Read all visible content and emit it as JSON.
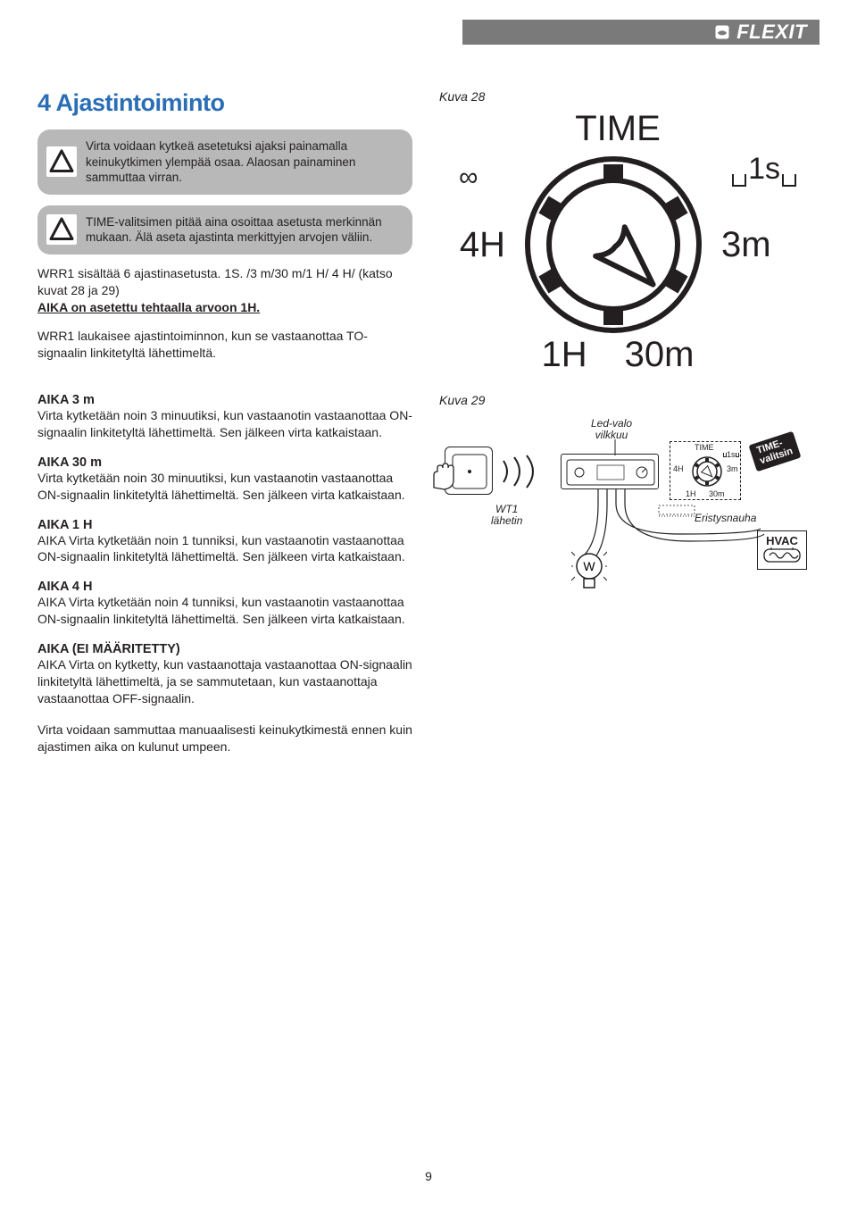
{
  "brand": "FLEXIT",
  "page_number": "9",
  "heading": "4   Ajastintoiminto",
  "callout1": "Virta voidaan kytkeä asetetuksi ajaksi painamalla keinukytkimen ylempää osaa. Alaosan painaminen sammuttaa virran.",
  "callout2": "TIME-valitsimen pitää aina osoittaa asetusta merkinnän mukaan. Älä aseta ajastinta merkittyjen arvojen väliin.",
  "para1_a": "WRR1 sisältää 6 ajastinasetusta. 1S. /3 m/30 m/1 H/ 4 H/ (katso kuvat 28 ja 29)",
  "para1_b": "AIKA on asetettu tehtaalla arvoon 1H.",
  "para2": "WRR1 laukaisee ajastintoiminnon, kun se vastaanottaa TO-signaalin linkitetyltä lähettimeltä.",
  "fig28": "Kuva 28",
  "fig29": "Kuva 29",
  "dial": {
    "title": "TIME",
    "inf": "∞",
    "top_right": "1s",
    "left": "4H",
    "right": "3m",
    "bottom_left": "1H",
    "bottom_right": "30m",
    "tick_color": "#231f20",
    "background": "#ffffff",
    "radius": 105
  },
  "sections": [
    {
      "title": "AIKA 3 m",
      "body": "Virta kytketään noin 3 minuutiksi, kun vastaanotin vastaanottaa ON-signaalin linkitetyltä lähettimeltä. Sen jälkeen virta katkaistaan."
    },
    {
      "title": "AIKA 30 m",
      "body": "Virta kytketään noin 30 minuutiksi, kun vastaanotin vastaanottaa ON-signaalin linkitetyltä lähettimeltä. Sen jälkeen virta katkaistaan."
    },
    {
      "title": "AIKA 1 H",
      "body": "AIKA Virta kytketään noin 1 tunniksi, kun vastaanotin vastaanottaa ON-signaalin linkitetyltä lähettimeltä. Sen jälkeen virta katkaistaan."
    },
    {
      "title": "AIKA 4 H",
      "body": "AIKA Virta kytketään noin 4 tunniksi, kun vastaanotin vastaanottaa ON-signaalin linkitetyltä lähettimeltä. Sen jälkeen virta katkaistaan."
    },
    {
      "title": "AIKA (EI MÄÄRITETTY)",
      "body": "AIKA Virta on kytketty, kun vastaanottaja vastaanottaa ON-signaalin linkitetyltä lähettimeltä, ja se sammutetaan, kun vastaanottaja vastaanottaa OFF-signaalin."
    }
  ],
  "para_last": "Virta voidaan sammuttaa manuaalisesti keinukytkimestä ennen kuin ajastimen aika on kulunut umpeen.",
  "small_diagram": {
    "led_label": "Led-valo\nvilkkuu",
    "wt1_label": "WT1\nlähetin",
    "tape_label": "Eristysnauha",
    "chip": "TIME-\nvalitsin",
    "hvac": "HVAC",
    "mini": {
      "title": "TIME",
      "tl": "4H",
      "tr": "1s",
      "br": "3m",
      "bl": "1H",
      "bb": "30m"
    },
    "bulb_letter": "W"
  },
  "colors": {
    "heading": "#2a6eb5",
    "callout_bg": "#b8b8b8",
    "topbar": "#7a7a7a",
    "text": "#231f20"
  }
}
